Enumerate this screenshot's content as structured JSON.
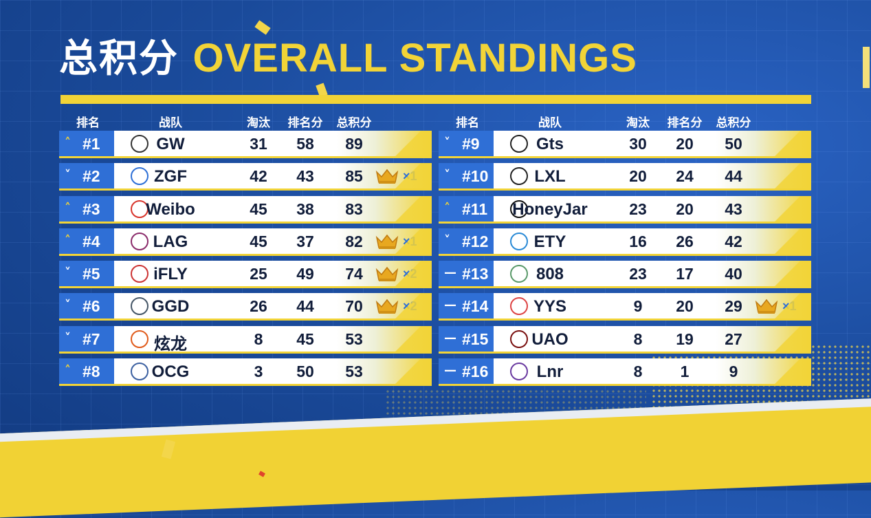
{
  "title": {
    "cn": "总积分",
    "en": "OVERALL STANDINGS"
  },
  "headers": {
    "rank": "排名",
    "team": "战队",
    "elims": "淘汰",
    "placement": "排名分",
    "total": "总积分"
  },
  "colors": {
    "accent": "#f2d437",
    "rank_bg": "#2f6fd6",
    "background": "#1a4a9a"
  },
  "left_rows": [
    {
      "trend": "up-arrow-icon",
      "rank": "#1",
      "team": "GW",
      "elims": "31",
      "placement": "58",
      "total": "89",
      "crown": ""
    },
    {
      "trend": "down-arrow-icon",
      "rank": "#2",
      "team": "ZGF",
      "elims": "42",
      "placement": "43",
      "total": "85",
      "crown": "×1"
    },
    {
      "trend": "up-arrow-icon",
      "rank": "#3",
      "team": "Weibo",
      "elims": "45",
      "placement": "38",
      "total": "83",
      "crown": ""
    },
    {
      "trend": "up-arrow-icon",
      "rank": "#4",
      "team": "LAG",
      "elims": "45",
      "placement": "37",
      "total": "82",
      "crown": "×1"
    },
    {
      "trend": "down-arrow-icon",
      "rank": "#5",
      "team": "iFLY",
      "elims": "25",
      "placement": "49",
      "total": "74",
      "crown": "×2"
    },
    {
      "trend": "down-arrow-icon",
      "rank": "#6",
      "team": "GGD",
      "elims": "26",
      "placement": "44",
      "total": "70",
      "crown": "×2"
    },
    {
      "trend": "down-arrow-icon",
      "rank": "#7",
      "team": "炫龙",
      "elims": "8",
      "placement": "45",
      "total": "53",
      "crown": ""
    },
    {
      "trend": "up-arrow-icon",
      "rank": "#8",
      "team": "OCG",
      "elims": "3",
      "placement": "50",
      "total": "53",
      "crown": ""
    }
  ],
  "right_rows": [
    {
      "trend": "down-arrow-icon",
      "rank": "#9",
      "team": "Gts",
      "elims": "30",
      "placement": "20",
      "total": "50",
      "crown": ""
    },
    {
      "trend": "down-arrow-icon",
      "rank": "#10",
      "team": "LXL",
      "elims": "20",
      "placement": "24",
      "total": "44",
      "crown": ""
    },
    {
      "trend": "up-arrow-icon",
      "rank": "#11",
      "team": "HoneyJar",
      "elims": "23",
      "placement": "20",
      "total": "43",
      "crown": ""
    },
    {
      "trend": "down-arrow-icon",
      "rank": "#12",
      "team": "ETY",
      "elims": "16",
      "placement": "26",
      "total": "42",
      "crown": ""
    },
    {
      "trend": "dash-icon",
      "rank": "#13",
      "team": "808",
      "elims": "23",
      "placement": "17",
      "total": "40",
      "crown": ""
    },
    {
      "trend": "dash-icon",
      "rank": "#14",
      "team": "YYS",
      "elims": "9",
      "placement": "20",
      "total": "29",
      "crown": "×1"
    },
    {
      "trend": "dash-icon",
      "rank": "#15",
      "team": "UAO",
      "elims": "8",
      "placement": "19",
      "total": "27",
      "crown": ""
    },
    {
      "trend": "dash-icon",
      "rank": "#16",
      "team": "Lnr",
      "elims": "8",
      "placement": "1",
      "total": "9",
      "crown": ""
    }
  ]
}
